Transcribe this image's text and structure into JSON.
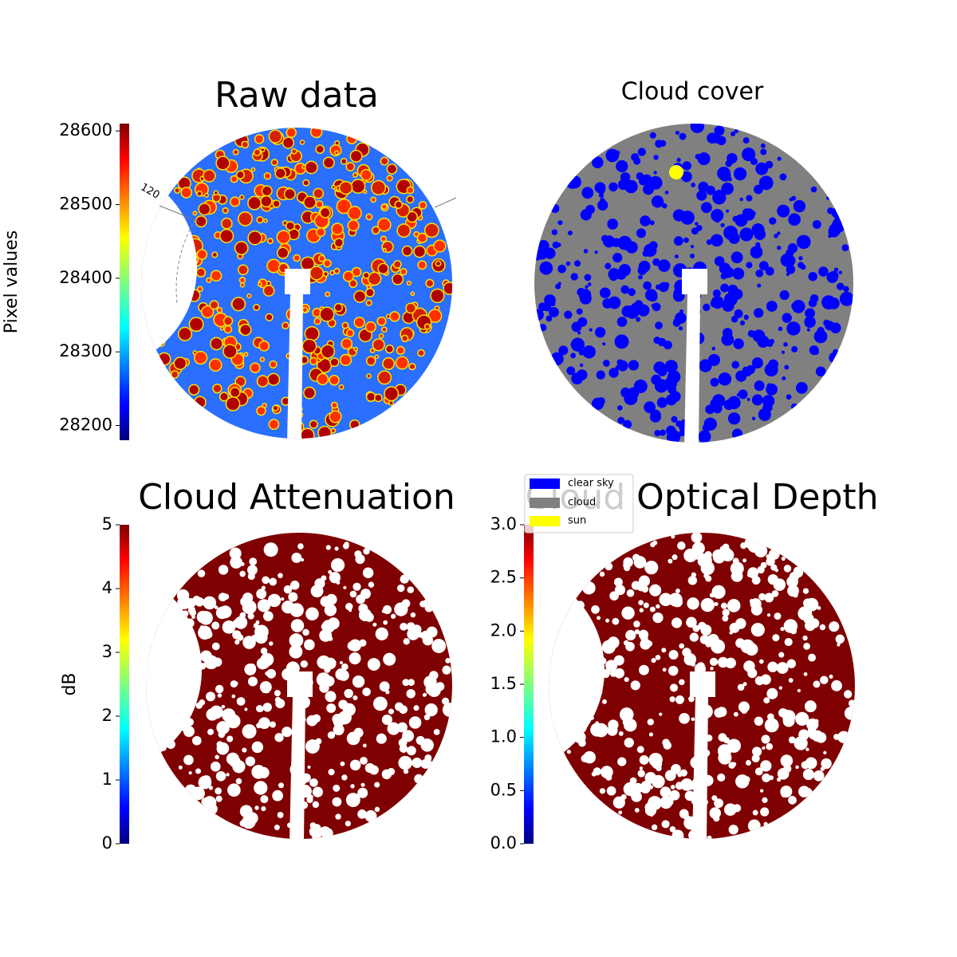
{
  "panels": [
    {
      "title": "Raw data",
      "colorbar": {
        "label": "Pixel values",
        "lim": [
          28180,
          28610
        ],
        "ticks": [
          28200,
          28300,
          28400,
          28500,
          28600
        ]
      },
      "annotation": "120"
    },
    {
      "title": "Cloud cover",
      "legend": [
        {
          "name": "clear sky",
          "color": "#0000ff"
        },
        {
          "name": "cloud",
          "color": "#808080"
        },
        {
          "name": "sun",
          "color": "#ffff00"
        }
      ]
    },
    {
      "title": "Cloud Attenuation",
      "colorbar": {
        "label": "dB",
        "lim": [
          0,
          5
        ],
        "ticks": [
          0,
          1,
          2,
          3,
          4,
          5
        ]
      }
    },
    {
      "title": "Cloud Optical Depth",
      "colorbar": {
        "lim": [
          0,
          3
        ],
        "ticks": [
          {
            "value": 0,
            "label": "0.0"
          },
          0.5,
          {
            "value": 1,
            "label": "1.0"
          },
          1.5,
          {
            "value": 2,
            "label": "2.0"
          },
          2.5,
          {
            "value": 3,
            "label": "3.0"
          }
        ]
      }
    }
  ]
}
